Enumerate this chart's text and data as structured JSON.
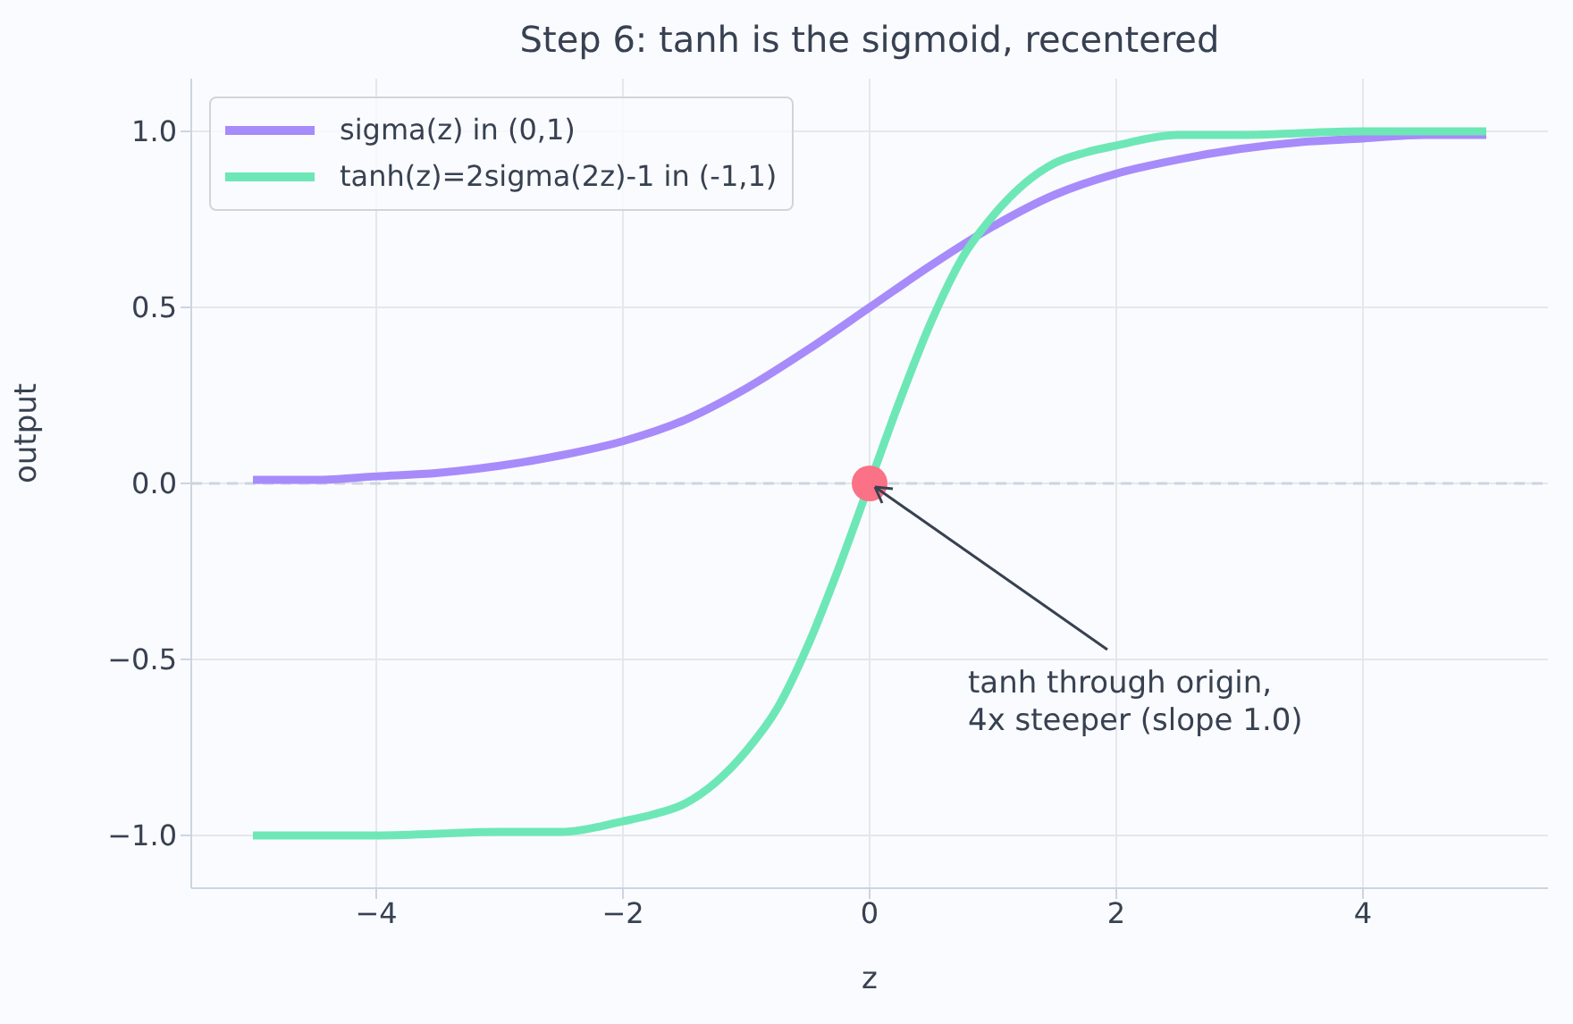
{
  "chart_data": {
    "type": "line",
    "title": "Step 6: tanh is the sigmoid, recentered",
    "xlabel": "z",
    "ylabel": "output",
    "xlim": [
      -5.5,
      5.5
    ],
    "xticks": [
      {
        "value": -4,
        "label": "−4"
      },
      {
        "value": -2,
        "label": "−2"
      },
      0,
      2,
      4
    ],
    "ylim": [
      -1.15,
      1.15
    ],
    "yticks": [
      {
        "value": -1,
        "label": "−1.0"
      },
      {
        "value": -0.5,
        "label": "−0.5"
      },
      {
        "value": 0,
        "label": "0.0"
      },
      {
        "value": 0.5,
        "label": "0.5"
      },
      {
        "value": 1,
        "label": "1.0"
      }
    ],
    "grid": true,
    "legend": "top left",
    "marker": "none",
    "line_style": "solid",
    "series": [
      {
        "name": "sigma(z)  in (0,1)",
        "color": "#a78bfa",
        "x": [
          -5,
          -4.5,
          -4,
          -3.5,
          -3,
          -2.5,
          -2,
          -1.5,
          -1,
          -0.5,
          0,
          0.5,
          1,
          1.5,
          2,
          2.5,
          3,
          3.5,
          4,
          4.5,
          5
        ],
        "values": [
          0.01,
          0.01,
          0.02,
          0.03,
          0.05,
          0.08,
          0.12,
          0.18,
          0.27,
          0.38,
          0.5,
          0.62,
          0.73,
          0.82,
          0.88,
          0.92,
          0.95,
          0.97,
          0.98,
          0.99,
          0.99
        ]
      },
      {
        "name": "tanh(z)=2sigma(2z)-1  in (-1,1)",
        "color": "#6ee7b7",
        "x": [
          -5,
          -4,
          -3,
          -2.5,
          -2,
          -1.75,
          -1.5,
          -1.25,
          -1,
          -0.75,
          -0.5,
          -0.25,
          0,
          0.25,
          0.5,
          0.75,
          1,
          1.25,
          1.5,
          1.75,
          2,
          2.5,
          3,
          4,
          5
        ],
        "values": [
          -1,
          -1,
          -0.99,
          -0.99,
          -0.96,
          -0.94,
          -0.91,
          -0.85,
          -0.76,
          -0.64,
          -0.46,
          -0.24,
          0,
          0.24,
          0.46,
          0.64,
          0.76,
          0.85,
          0.91,
          0.94,
          0.96,
          0.99,
          0.99,
          1,
          1
        ]
      },
      {
        "type": "scatter",
        "marker": "circle",
        "color": "#fb7185",
        "x": [
          0
        ],
        "values": [
          0
        ]
      }
    ],
    "ref_lines": [
      {
        "axis": "y",
        "value": 0,
        "color": "#cbd5e1",
        "line_style": "dashed"
      }
    ],
    "annotations": [
      {
        "text": "tanh through origin,\n4x steeper (slope 1.0)",
        "x": 0,
        "y": 0
      }
    ]
  }
}
